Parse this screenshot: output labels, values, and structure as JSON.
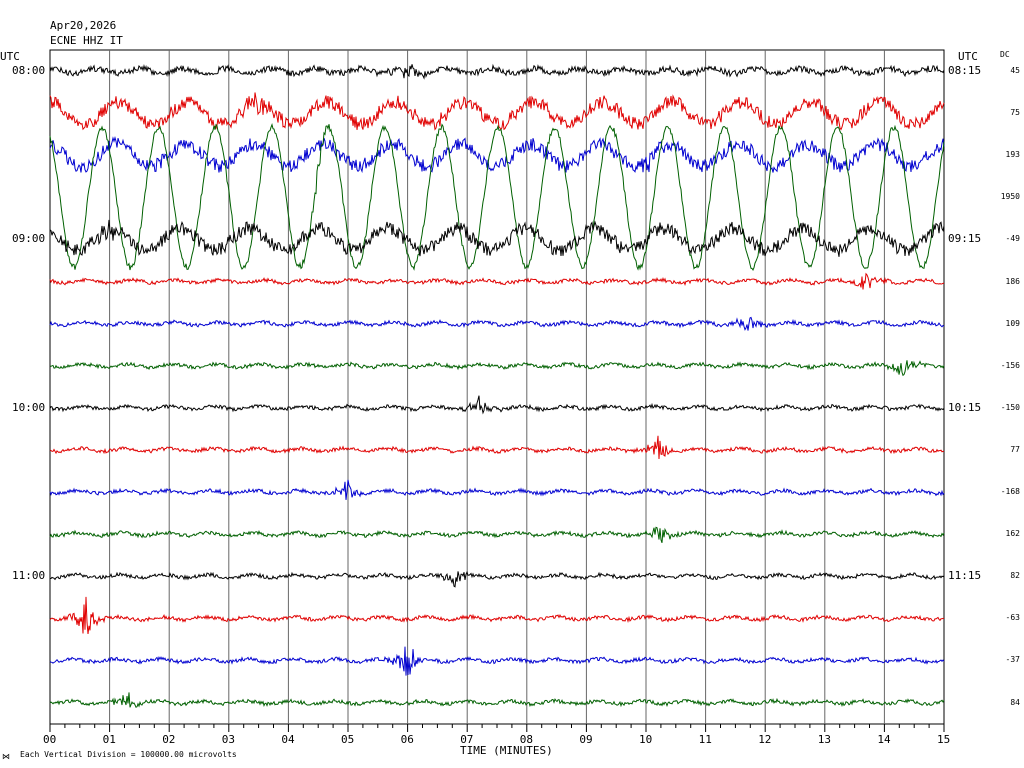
{
  "header": {
    "date": "Apr20,2026",
    "station": "ECNE HHZ IT",
    "utc_left": "UTC",
    "utc_right": "UTC",
    "dc_label": "DC"
  },
  "footer": {
    "scale_note": "Each Vertical Division = 100000.00 microvolts"
  },
  "colors": {
    "black": "#000000",
    "red": "#e00000",
    "blue": "#0000d0",
    "green": "#006000"
  },
  "chart_data": {
    "type": "line",
    "title": "",
    "xlabel": "TIME (MINUTES)",
    "xlim": [
      0,
      15
    ],
    "x_ticks": [
      "00",
      "01",
      "02",
      "03",
      "04",
      "05",
      "06",
      "07",
      "08",
      "09",
      "10",
      "11",
      "12",
      "13",
      "14",
      "15"
    ],
    "left_time_labels": [
      {
        "row": 0,
        "label": "08:00"
      },
      {
        "row": 4,
        "label": "09:00"
      },
      {
        "row": 8,
        "label": "10:00"
      },
      {
        "row": 12,
        "label": "11:00"
      }
    ],
    "right_time_labels": [
      {
        "row": 0,
        "label": "08:15"
      },
      {
        "row": 4,
        "label": "09:15"
      },
      {
        "row": 8,
        "label": "10:15"
      },
      {
        "row": 12,
        "label": "11:15"
      }
    ],
    "traces": [
      {
        "row": 0,
        "color": "black",
        "dc": "45",
        "amplitude": "medium",
        "event_minute": 6.0
      },
      {
        "row": 1,
        "color": "red",
        "dc": "75",
        "amplitude": "large",
        "event_minute": 3.5
      },
      {
        "row": 2,
        "color": "blue",
        "dc": "193",
        "amplitude": "large",
        "event_minute": 10.0
      },
      {
        "row": 3,
        "color": "green",
        "dc": "1950",
        "amplitude": "very-large",
        "event_minute": 4.5
      },
      {
        "row": 4,
        "color": "black",
        "dc": "-49",
        "amplitude": "large",
        "event_minute": 1.0
      },
      {
        "row": 5,
        "color": "red",
        "dc": "186",
        "amplitude": "small",
        "event_minute": 13.7
      },
      {
        "row": 6,
        "color": "blue",
        "dc": "109",
        "amplitude": "small",
        "event_minute": 11.7
      },
      {
        "row": 7,
        "color": "green",
        "dc": "-156",
        "amplitude": "small",
        "event_minute": 14.3
      },
      {
        "row": 8,
        "color": "black",
        "dc": "-150",
        "amplitude": "small",
        "event_minute": 7.2
      },
      {
        "row": 9,
        "color": "red",
        "dc": "77",
        "amplitude": "small",
        "event_minute": 10.2
      },
      {
        "row": 10,
        "color": "blue",
        "dc": "-168",
        "amplitude": "small",
        "event_minute": 5.0
      },
      {
        "row": 11,
        "color": "green",
        "dc": "162",
        "amplitude": "small",
        "event_minute": 10.2
      },
      {
        "row": 12,
        "color": "black",
        "dc": "82",
        "amplitude": "small",
        "event_minute": 6.8
      },
      {
        "row": 13,
        "color": "red",
        "dc": "-63",
        "amplitude": "spiky",
        "event_minute": 0.6
      },
      {
        "row": 14,
        "color": "blue",
        "dc": "-37",
        "amplitude": "spiky",
        "event_minute": 6.0
      },
      {
        "row": 15,
        "color": "green",
        "dc": "84",
        "amplitude": "small",
        "event_minute": 1.3
      }
    ]
  }
}
